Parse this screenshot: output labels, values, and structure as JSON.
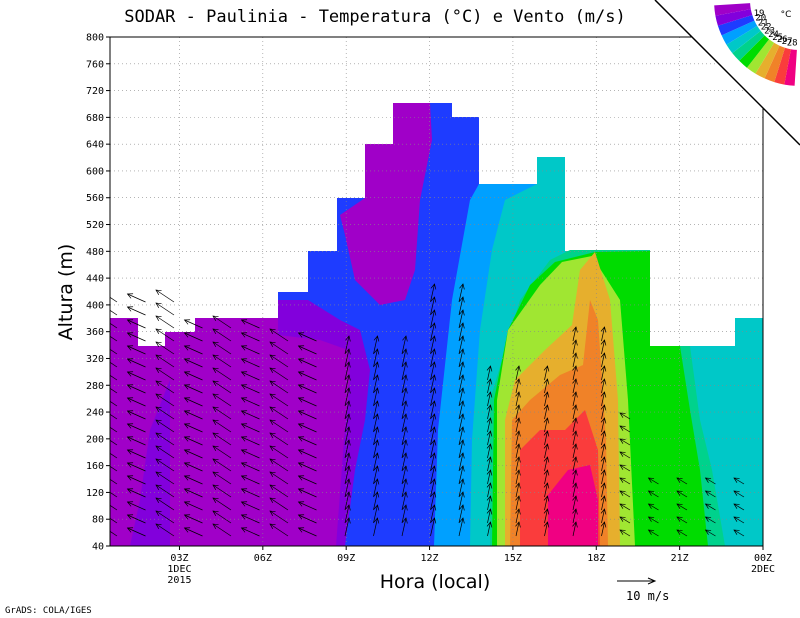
{
  "chart_data": {
    "type": "heatmap",
    "title": "SODAR - Paulinia - Temperatura (°C) e Vento (m/s)",
    "xlabel": "Hora (local)",
    "ylabel": "Altura (m)",
    "ylim": [
      40,
      800
    ],
    "yticks": [
      40,
      80,
      120,
      160,
      200,
      240,
      280,
      320,
      360,
      400,
      440,
      480,
      520,
      560,
      600,
      640,
      680,
      720,
      760,
      800
    ],
    "xticks": [
      {
        "hour": 3,
        "label": "03Z",
        "sub1": "1DEC",
        "sub2": "2015"
      },
      {
        "hour": 6,
        "label": "06Z"
      },
      {
        "hour": 9,
        "label": "09Z"
      },
      {
        "hour": 12,
        "label": "12Z"
      },
      {
        "hour": 15,
        "label": "15Z"
      },
      {
        "hour": 18,
        "label": "18Z"
      },
      {
        "hour": 21,
        "label": "21Z"
      },
      {
        "hour": 24,
        "label": "00Z",
        "sub1": "2DEC"
      }
    ],
    "xlim_hours": [
      0.5,
      24
    ],
    "grid": true,
    "colorbar": {
      "unit": "°C",
      "values": [
        19,
        20,
        21,
        22,
        23,
        24,
        25,
        26,
        27,
        28
      ],
      "colors": [
        "#a000c8",
        "#8200dc",
        "#1e3cff",
        "#00a0ff",
        "#00c8c8",
        "#00d28c",
        "#00dc00",
        "#a0e632",
        "#e6af2d",
        "#f08228",
        "#fa3c3c",
        "#f00082"
      ],
      "placement": "top-right"
    },
    "wind_reference": {
      "label": "10 m/s",
      "value_ms": 10
    },
    "credit": "GrADS: COLA/IGES"
  }
}
